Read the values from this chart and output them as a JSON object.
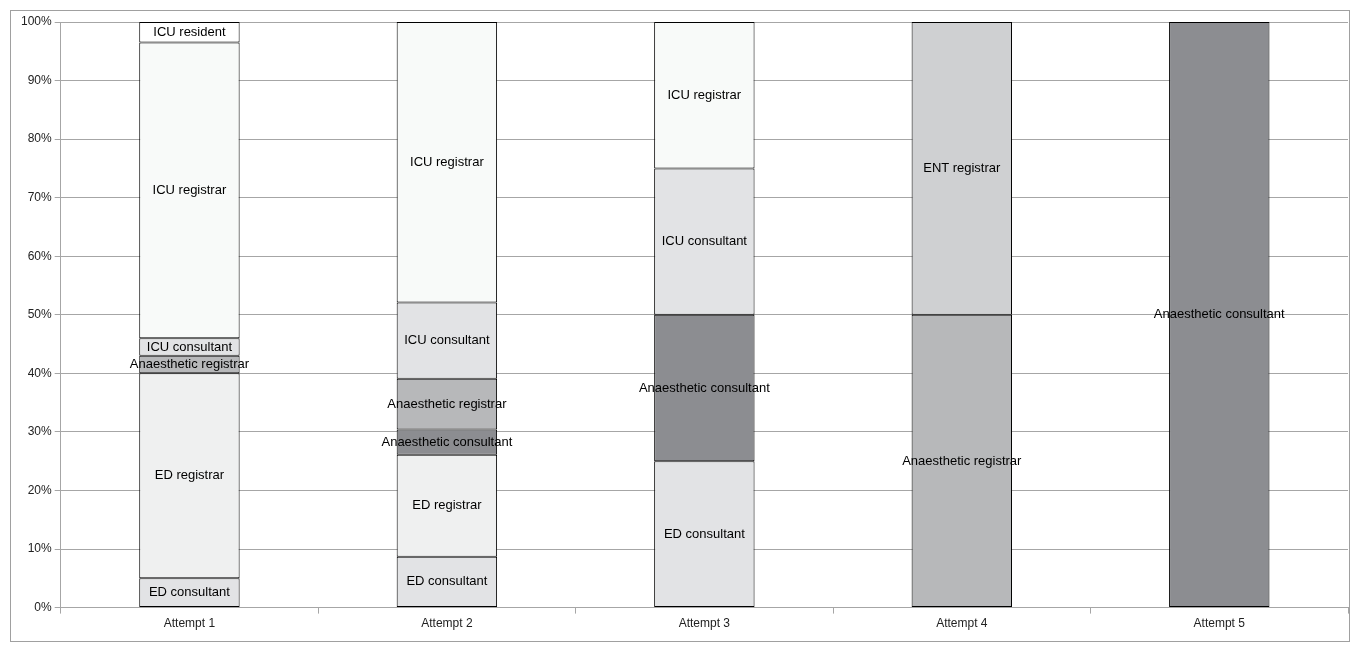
{
  "chart_data": {
    "type": "bar",
    "stacked": true,
    "categories": [
      "Attempt 1",
      "Attempt 2",
      "Attempt 3",
      "Attempt 4",
      "Attempt 5"
    ],
    "series": [
      {
        "name": "ED consultant",
        "color": "#e2e3e5",
        "values": [
          5,
          8.7,
          25,
          null,
          null
        ]
      },
      {
        "name": "ED registrar",
        "color": "#eff0f0",
        "values": [
          35,
          17.4,
          null,
          null,
          null
        ]
      },
      {
        "name": "Anaesthetic consultant",
        "color": "#8c8d91",
        "values": [
          null,
          4.3,
          25,
          null,
          100
        ]
      },
      {
        "name": "Anaesthetic registrar",
        "color": "#b7b8ba",
        "values": [
          3,
          8.7,
          null,
          50,
          null
        ]
      },
      {
        "name": "ICU consultant",
        "color": "#e2e3e5",
        "values": [
          3,
          13,
          25,
          null,
          null
        ]
      },
      {
        "name": "ICU registrar",
        "color": "#f8faf9",
        "values": [
          50.5,
          47.9,
          25,
          null,
          null
        ]
      },
      {
        "name": "ICU resident",
        "color": "#ffffff",
        "values": [
          3.5,
          null,
          null,
          null,
          null
        ]
      },
      {
        "name": "ENT registrar",
        "color": "#cfd0d2",
        "values": [
          null,
          null,
          null,
          50,
          null
        ]
      }
    ],
    "ylim": [
      0,
      100
    ],
    "yticks": [
      {
        "value": 0,
        "label": "0%"
      },
      {
        "value": 10,
        "label": "10%"
      },
      {
        "value": 20,
        "label": "20%"
      },
      {
        "value": 30,
        "label": "30%"
      },
      {
        "value": 40,
        "label": "40%"
      },
      {
        "value": 50,
        "label": "50%"
      },
      {
        "value": 60,
        "label": "60%"
      },
      {
        "value": 70,
        "label": "70%"
      },
      {
        "value": 80,
        "label": "80%"
      },
      {
        "value": 90,
        "label": "90%"
      },
      {
        "value": 100,
        "label": "100%"
      }
    ],
    "grid": "y",
    "legend": false
  }
}
